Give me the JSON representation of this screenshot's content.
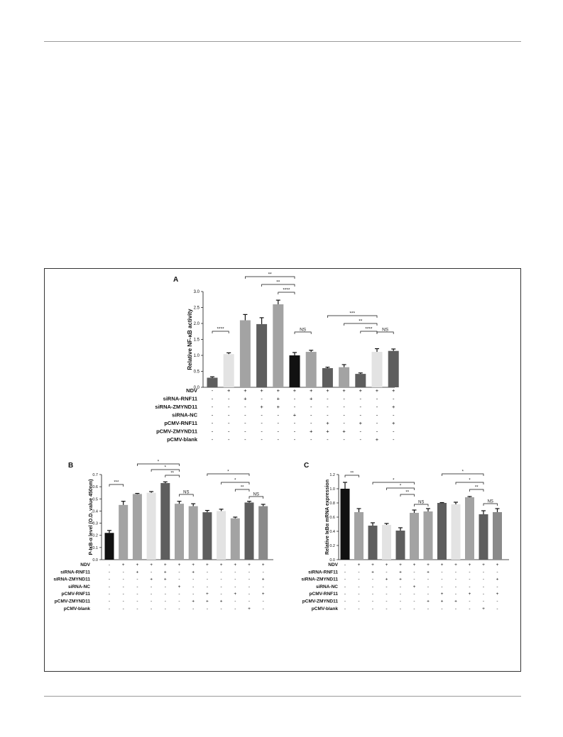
{
  "panels": {
    "a": "A",
    "b": "B",
    "c": "C"
  },
  "colors": {
    "black": "#111111",
    "dark": "#5e5e5e",
    "mid": "#8a8a8a",
    "light": "#a3a3a3",
    "pale": "#e3e3e3",
    "frame": "#333333"
  },
  "chart_data": [
    {
      "type": "bar",
      "panel": "A",
      "ylabel": "Relative NF-κB activity",
      "ylim": [
        0,
        3.0
      ],
      "yticks": [
        "0.0",
        "0.5",
        "1.0",
        "1.5",
        "2.0",
        "2.5",
        "3.0"
      ],
      "values": [
        0.3,
        1.04,
        2.1,
        1.98,
        2.6,
        1.0,
        1.11,
        0.6,
        0.63,
        0.42,
        1.11,
        1.14
      ],
      "errors": [
        0.03,
        0.04,
        0.18,
        0.2,
        0.13,
        0.09,
        0.05,
        0.03,
        0.08,
        0.03,
        0.1,
        0.06
      ],
      "bar_colors": [
        "#5e5e5e",
        "#e3e3e3",
        "#a3a3a3",
        "#5e5e5e",
        "#a3a3a3",
        "#111111",
        "#a3a3a3",
        "#5e5e5e",
        "#a3a3a3",
        "#5e5e5e",
        "#e3e3e3",
        "#5e5e5e"
      ],
      "conditions": [
        {
          "name": "NDV",
          "signs": [
            "-",
            "+",
            "+",
            "+",
            "+",
            "+",
            "+",
            "+",
            "+",
            "+",
            "+",
            "+"
          ]
        },
        {
          "name": "siRNA-RNF11",
          "signs": [
            "-",
            "-",
            "+",
            "-",
            "+",
            "-",
            "+",
            "-",
            "-",
            "-",
            "-",
            "-"
          ]
        },
        {
          "name": "siRNA-ZMYND11",
          "signs": [
            "-",
            "-",
            "-",
            "+",
            "+",
            "-",
            "-",
            "-",
            "-",
            "-",
            "-",
            "+"
          ]
        },
        {
          "name": "siRNA-NC",
          "signs": [
            "-",
            "-",
            "-",
            "-",
            "-",
            "+",
            "-",
            "-",
            "-",
            "-",
            "-",
            "-"
          ]
        },
        {
          "name": "pCMV-RNF11",
          "signs": [
            "-",
            "-",
            "-",
            "-",
            "-",
            "-",
            "-",
            "+",
            "-",
            "+",
            "-",
            "+"
          ]
        },
        {
          "name": "pCMV-ZMYND11",
          "signs": [
            "-",
            "-",
            "-",
            "-",
            "-",
            "-",
            "+",
            "+",
            "+",
            "-",
            "-",
            "-"
          ]
        },
        {
          "name": "pCMV-blank",
          "signs": [
            "-",
            "-",
            "-",
            "-",
            "-",
            "-",
            "-",
            "-",
            "-",
            "-",
            "+",
            "-"
          ]
        }
      ],
      "significance": [
        {
          "from": 0,
          "to": 1,
          "label": "****"
        },
        {
          "from": 2,
          "to": 5,
          "label": "**"
        },
        {
          "from": 3,
          "to": 5,
          "label": "**"
        },
        {
          "from": 4,
          "to": 5,
          "label": "****"
        },
        {
          "from": 5,
          "to": 6,
          "label": "NS"
        },
        {
          "from": 7,
          "to": 10,
          "label": "***"
        },
        {
          "from": 8,
          "to": 10,
          "label": "**"
        },
        {
          "from": 9,
          "to": 10,
          "label": "****"
        },
        {
          "from": 10,
          "to": 11,
          "label": "NS"
        }
      ]
    },
    {
      "type": "bar",
      "panel": "B",
      "ylabel": "P-IκB-α level (O.D. value 450nm)",
      "ylim": [
        0,
        0.7
      ],
      "yticks": [
        "0.0",
        "0.1",
        "0.2",
        "0.3",
        "0.4",
        "0.5",
        "0.6",
        "0.7"
      ],
      "values": [
        0.22,
        0.45,
        0.54,
        0.55,
        0.63,
        0.46,
        0.44,
        0.39,
        0.4,
        0.34,
        0.47,
        0.44
      ],
      "errors": [
        0.02,
        0.03,
        0.005,
        0.01,
        0.01,
        0.02,
        0.02,
        0.015,
        0.015,
        0.01,
        0.01,
        0.015
      ],
      "bar_colors": [
        "#111111",
        "#a3a3a3",
        "#a3a3a3",
        "#e3e3e3",
        "#5e5e5e",
        "#a3a3a3",
        "#a3a3a3",
        "#5e5e5e",
        "#e3e3e3",
        "#a3a3a3",
        "#5e5e5e",
        "#8a8a8a"
      ],
      "conditions": [
        {
          "name": "NDV",
          "signs": [
            "-",
            "+",
            "+",
            "+",
            "+",
            "+",
            "+",
            "+",
            "+",
            "+",
            "+",
            "+"
          ]
        },
        {
          "name": "siRNA-RNF11",
          "signs": [
            "-",
            "-",
            "+",
            "-",
            "+",
            "-",
            "+",
            "-",
            "-",
            "-",
            "-",
            "-"
          ]
        },
        {
          "name": "siRNA-ZMYND11",
          "signs": [
            "-",
            "-",
            "-",
            "+",
            "+",
            "-",
            "-",
            "-",
            "-",
            "-",
            "-",
            "+"
          ]
        },
        {
          "name": "siRNA-NC",
          "signs": [
            "-",
            "-",
            "-",
            "-",
            "-",
            "+",
            "-",
            "-",
            "-",
            "-",
            "-",
            "-"
          ]
        },
        {
          "name": "pCMV-RNF11",
          "signs": [
            "-",
            "-",
            "-",
            "-",
            "-",
            "-",
            "-",
            "+",
            "-",
            "+",
            "-",
            "+"
          ]
        },
        {
          "name": "pCMV-ZMYND11",
          "signs": [
            "-",
            "-",
            "-",
            "-",
            "-",
            "-",
            "+",
            "+",
            "+",
            "-",
            "-",
            "-"
          ]
        },
        {
          "name": "pCMV-blank",
          "signs": [
            "-",
            "-",
            "-",
            "-",
            "-",
            "-",
            "-",
            "-",
            "-",
            "-",
            "+",
            "-"
          ]
        }
      ],
      "significance": [
        {
          "from": 0,
          "to": 1,
          "label": "***"
        },
        {
          "from": 2,
          "to": 5,
          "label": "*"
        },
        {
          "from": 3,
          "to": 5,
          "label": "*"
        },
        {
          "from": 4,
          "to": 5,
          "label": "**"
        },
        {
          "from": 5,
          "to": 6,
          "label": "NS"
        },
        {
          "from": 7,
          "to": 10,
          "label": "*"
        },
        {
          "from": 8,
          "to": 10,
          "label": "*"
        },
        {
          "from": 9,
          "to": 10,
          "label": "**"
        },
        {
          "from": 10,
          "to": 11,
          "label": "NS"
        }
      ]
    },
    {
      "type": "bar",
      "panel": "C",
      "ylabel": "Relative IκBα mRNA expression",
      "ylim": [
        0,
        1.2
      ],
      "yticks": [
        "0.0",
        "0.2",
        "0.4",
        "0.6",
        "0.8",
        "1.0",
        "1.2"
      ],
      "values": [
        1.0,
        0.67,
        0.48,
        0.49,
        0.41,
        0.66,
        0.68,
        0.8,
        0.78,
        0.88,
        0.64,
        0.67
      ],
      "errors": [
        0.09,
        0.05,
        0.04,
        0.02,
        0.04,
        0.04,
        0.04,
        0.005,
        0.03,
        0.01,
        0.05,
        0.05
      ],
      "bar_colors": [
        "#111111",
        "#a3a3a3",
        "#5e5e5e",
        "#e3e3e3",
        "#5e5e5e",
        "#a3a3a3",
        "#a3a3a3",
        "#5e5e5e",
        "#e3e3e3",
        "#a3a3a3",
        "#5e5e5e",
        "#8a8a8a"
      ],
      "conditions": [
        {
          "name": "NDV",
          "signs": [
            "-",
            "+",
            "+",
            "+",
            "+",
            "+",
            "+",
            "+",
            "+",
            "+",
            "+",
            "+"
          ]
        },
        {
          "name": "siRNA-RNF11",
          "signs": [
            "-",
            "-",
            "+",
            "-",
            "+",
            "-",
            "+",
            "-",
            "-",
            "-",
            "-",
            "-"
          ]
        },
        {
          "name": "siRNA-ZMYND11",
          "signs": [
            "-",
            "-",
            "-",
            "+",
            "+",
            "-",
            "-",
            "-",
            "-",
            "-",
            "-",
            "+"
          ]
        },
        {
          "name": "siRNA-NC",
          "signs": [
            "-",
            "-",
            "-",
            "-",
            "-",
            "+",
            "-",
            "-",
            "-",
            "-",
            "-",
            "-"
          ]
        },
        {
          "name": "pCMV-RNF11",
          "signs": [
            "-",
            "-",
            "-",
            "-",
            "-",
            "-",
            "-",
            "+",
            "-",
            "+",
            "-",
            "+"
          ]
        },
        {
          "name": "pCMV-ZMYND11",
          "signs": [
            "-",
            "-",
            "-",
            "-",
            "-",
            "-",
            "+",
            "+",
            "+",
            "-",
            "-",
            "-"
          ]
        },
        {
          "name": "pCMV-blank",
          "signs": [
            "-",
            "-",
            "-",
            "-",
            "-",
            "-",
            "-",
            "-",
            "-",
            "-",
            "+",
            "-"
          ]
        }
      ],
      "significance": [
        {
          "from": 0,
          "to": 1,
          "label": "**"
        },
        {
          "from": 2,
          "to": 5,
          "label": "*"
        },
        {
          "from": 3,
          "to": 5,
          "label": "*"
        },
        {
          "from": 4,
          "to": 5,
          "label": "**"
        },
        {
          "from": 5,
          "to": 6,
          "label": "NS"
        },
        {
          "from": 7,
          "to": 10,
          "label": "*"
        },
        {
          "from": 8,
          "to": 10,
          "label": "*"
        },
        {
          "from": 9,
          "to": 10,
          "label": "**"
        },
        {
          "from": 10,
          "to": 11,
          "label": "NS"
        }
      ]
    }
  ]
}
